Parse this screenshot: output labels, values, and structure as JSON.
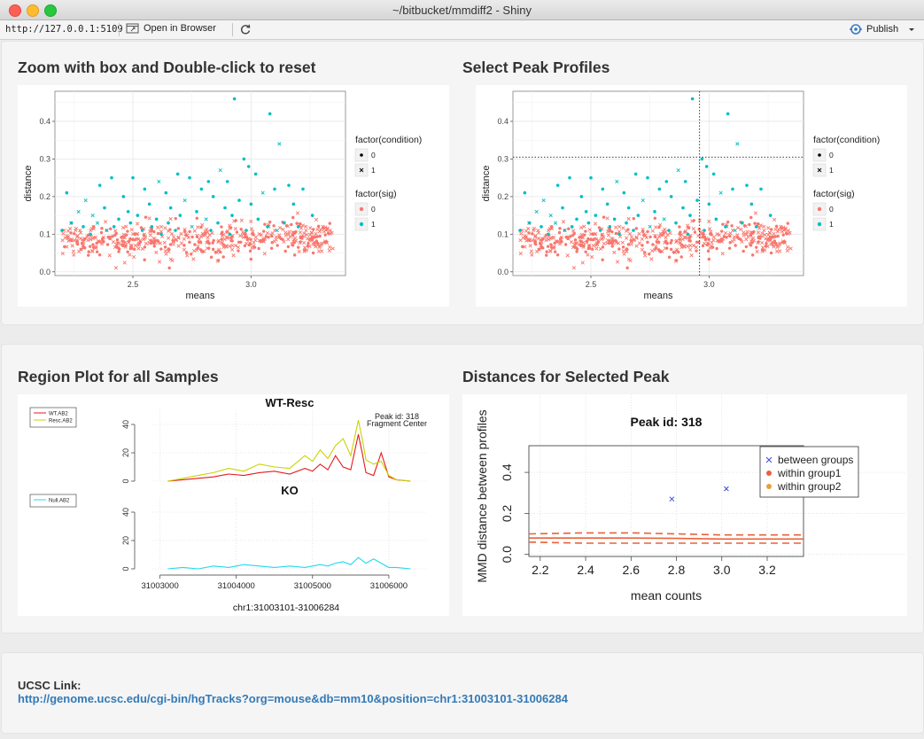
{
  "window": {
    "title": "~/bitbucket/mmdiff2 - Shiny",
    "colors": {
      "close": "#fd5f57",
      "minimize": "#febc2e",
      "zoom": "#29c73f"
    }
  },
  "toolbar": {
    "url": "http://127.0.0.1:5109",
    "open_in_browser": "Open in Browser",
    "publish": "Publish",
    "icons": [
      "open-browser-icon",
      "refresh-icon",
      "publish-icon",
      "dropdown-arrow-icon"
    ]
  },
  "panels": {
    "zoom_title": "Zoom with box and Double-click to reset",
    "select_title": "Select Peak Profiles",
    "region_title": "Region Plot for all Samples",
    "distances_title": "Distances for Selected Peak"
  },
  "ucsc": {
    "label": "UCSC Link:",
    "link": "http://genome.ucsc.edu/cgi-bin/hgTracks?org=mouse&db=mm10&position=chr1:31003101-31006284"
  },
  "chart_data": [
    {
      "id": "zoom_scatter",
      "type": "scatter",
      "xlabel": "means",
      "ylabel": "distance",
      "xlim": [
        2.17,
        3.4
      ],
      "ylim": [
        -0.01,
        0.48
      ],
      "xticks": [
        2.5,
        3.0
      ],
      "yticks": [
        0.0,
        0.1,
        0.2,
        0.3,
        0.4
      ],
      "grid": true,
      "legend_condition_title": "factor(condition)",
      "legend_condition": [
        "0",
        "1"
      ],
      "legend_sig_title": "factor(sig)",
      "legend_sig": [
        "0",
        "1"
      ],
      "colors": {
        "sig0": "#F8766D",
        "sig1": "#00BFC4"
      },
      "sig1_points": [
        [
          2.93,
          0.46
        ],
        [
          2.97,
          0.3
        ],
        [
          3.08,
          0.42
        ],
        [
          3.12,
          0.34
        ],
        [
          2.99,
          0.28
        ],
        [
          3.02,
          0.26
        ],
        [
          2.9,
          0.24
        ],
        [
          3.16,
          0.23
        ],
        [
          2.87,
          0.27
        ],
        [
          3.22,
          0.22
        ],
        [
          2.36,
          0.23
        ],
        [
          2.41,
          0.25
        ],
        [
          2.5,
          0.25
        ],
        [
          2.61,
          0.24
        ],
        [
          2.69,
          0.26
        ],
        [
          2.74,
          0.25
        ],
        [
          2.82,
          0.24
        ],
        [
          2.22,
          0.21
        ],
        [
          2.3,
          0.19
        ],
        [
          2.55,
          0.22
        ],
        [
          2.64,
          0.21
        ],
        [
          2.79,
          0.22
        ],
        [
          2.84,
          0.2
        ],
        [
          3.05,
          0.21
        ],
        [
          2.95,
          0.19
        ],
        [
          3.1,
          0.22
        ],
        [
          3.0,
          0.18
        ],
        [
          2.46,
          0.2
        ],
        [
          2.27,
          0.16
        ],
        [
          2.38,
          0.17
        ],
        [
          2.48,
          0.16
        ],
        [
          2.57,
          0.18
        ],
        [
          2.66,
          0.17
        ],
        [
          2.72,
          0.19
        ],
        [
          2.77,
          0.16
        ],
        [
          2.89,
          0.17
        ],
        [
          3.18,
          0.18
        ],
        [
          3.26,
          0.15
        ],
        [
          2.33,
          0.15
        ],
        [
          2.44,
          0.14
        ],
        [
          2.52,
          0.15
        ],
        [
          2.6,
          0.14
        ],
        [
          2.7,
          0.15
        ],
        [
          2.81,
          0.14
        ],
        [
          2.92,
          0.15
        ],
        [
          3.03,
          0.14
        ],
        [
          2.24,
          0.13
        ],
        [
          2.29,
          0.12
        ],
        [
          2.35,
          0.13
        ],
        [
          2.42,
          0.12
        ],
        [
          2.49,
          0.13
        ],
        [
          2.58,
          0.12
        ],
        [
          2.65,
          0.13
        ],
        [
          2.75,
          0.12
        ],
        [
          2.86,
          0.13
        ],
        [
          3.07,
          0.12
        ],
        [
          3.14,
          0.13
        ],
        [
          2.2,
          0.11
        ],
        [
          2.39,
          0.11
        ],
        [
          2.54,
          0.11
        ],
        [
          2.68,
          0.11
        ],
        [
          2.83,
          0.11
        ],
        [
          2.98,
          0.11
        ],
        [
          3.11,
          0.11
        ],
        [
          2.32,
          0.1
        ],
        [
          2.62,
          0.1
        ],
        [
          2.91,
          0.1
        ],
        [
          3.2,
          0.12
        ]
      ]
    },
    {
      "id": "select_scatter",
      "type": "scatter",
      "xlabel": "means",
      "ylabel": "distance",
      "xlim": [
        2.17,
        3.4
      ],
      "ylim": [
        -0.01,
        0.48
      ],
      "xticks": [
        2.5,
        3.0
      ],
      "yticks": [
        0.0,
        0.1,
        0.2,
        0.3,
        0.4
      ],
      "grid": true,
      "selected_x": 2.96,
      "selected_y": 0.305,
      "legend_condition_title": "factor(condition)",
      "legend_condition": [
        "0",
        "1"
      ],
      "legend_sig_title": "factor(sig)",
      "legend_sig": [
        "0",
        "1"
      ]
    },
    {
      "id": "region_plot",
      "type": "line",
      "xlabel": "chr1:31003101-31006284",
      "xlim": [
        31002900,
        31006500
      ],
      "xticks": [
        "31003000",
        "31004000",
        "31005000",
        "31006000"
      ],
      "yticks": [
        "0",
        "20",
        "40"
      ],
      "ylim": [
        0,
        50
      ],
      "annotation_peak": "Peak id: 318",
      "annotation_center": "Fragment Center",
      "panels": [
        {
          "title": "WT-Resc",
          "legend": [
            "WT.AB2",
            "Resc.AB2"
          ],
          "series": [
            {
              "name": "WT.AB2",
              "color": "#e41a1c",
              "x": [
                31003101,
                31003300,
                31003500,
                31003700,
                31003900,
                31004100,
                31004300,
                31004500,
                31004700,
                31004900,
                31005000,
                31005100,
                31005200,
                31005300,
                31005400,
                31005500,
                31005600,
                31005650,
                31005700,
                31005800,
                31005900,
                31006000,
                31006100,
                31006284
              ],
              "y": [
                0,
                1,
                2,
                3,
                5,
                4,
                6,
                7,
                5,
                9,
                7,
                12,
                8,
                18,
                10,
                8,
                33,
                20,
                6,
                4,
                20,
                3,
                1,
                0
              ]
            },
            {
              "name": "Resc.AB2",
              "color": "#c8d400",
              "x": [
                31003101,
                31003300,
                31003500,
                31003700,
                31003900,
                31004100,
                31004300,
                31004500,
                31004700,
                31004900,
                31005000,
                31005100,
                31005200,
                31005300,
                31005400,
                31005500,
                31005600,
                31005650,
                31005700,
                31005800,
                31005900,
                31006000,
                31006100,
                31006284
              ],
              "y": [
                0,
                2,
                4,
                6,
                9,
                7,
                12,
                10,
                9,
                18,
                14,
                22,
                16,
                25,
                30,
                18,
                43,
                30,
                15,
                12,
                14,
                4,
                1,
                0
              ]
            }
          ]
        },
        {
          "title": "KO",
          "legend": [
            "Null.AB2"
          ],
          "series": [
            {
              "name": "Null.AB2",
              "color": "#22d8f0",
              "x": [
                31003101,
                31003300,
                31003500,
                31003700,
                31003900,
                31004100,
                31004300,
                31004500,
                31004700,
                31004900,
                31005000,
                31005100,
                31005200,
                31005300,
                31005400,
                31005500,
                31005600,
                31005650,
                31005700,
                31005800,
                31005900,
                31006000,
                31006100,
                31006284
              ],
              "y": [
                0,
                1,
                0,
                2,
                1,
                3,
                2,
                1,
                2,
                1,
                2,
                3,
                2,
                4,
                5,
                3,
                8,
                6,
                4,
                7,
                4,
                1,
                1,
                0
              ]
            }
          ]
        }
      ]
    },
    {
      "id": "distance_plot",
      "type": "scatter",
      "title": "Peak id: 318",
      "xlabel": "mean counts",
      "ylabel": "MMD distance between profiles",
      "xlim": [
        2.15,
        3.36
      ],
      "ylim": [
        -0.01,
        0.53
      ],
      "xticks": [
        "2.2",
        "2.4",
        "2.6",
        "2.8",
        "3.0",
        "3.2"
      ],
      "yticks": [
        "0.0",
        "0.2",
        "0.4"
      ],
      "legend": [
        "between groups",
        "within group1",
        "within group2"
      ],
      "colors": {
        "between": "#3b4bd8",
        "group1": "#e8623a",
        "group2": "#e8a13a"
      },
      "between_points": [
        [
          2.78,
          0.27
        ],
        [
          3.02,
          0.32
        ]
      ],
      "mean_line": {
        "x": [
          2.15,
          2.4,
          2.6,
          2.8,
          3.0,
          3.2,
          3.36
        ],
        "y": [
          0.08,
          0.08,
          0.08,
          0.078,
          0.075,
          0.075,
          0.075
        ]
      },
      "upper_band": {
        "x": [
          2.15,
          2.4,
          2.6,
          2.8,
          3.0,
          3.2,
          3.36
        ],
        "y": [
          0.1,
          0.105,
          0.105,
          0.1,
          0.095,
          0.095,
          0.095
        ]
      },
      "lower_band": {
        "x": [
          2.15,
          2.4,
          2.6,
          2.8,
          3.0,
          3.2,
          3.36
        ],
        "y": [
          0.06,
          0.055,
          0.055,
          0.055,
          0.055,
          0.055,
          0.055
        ]
      }
    }
  ]
}
